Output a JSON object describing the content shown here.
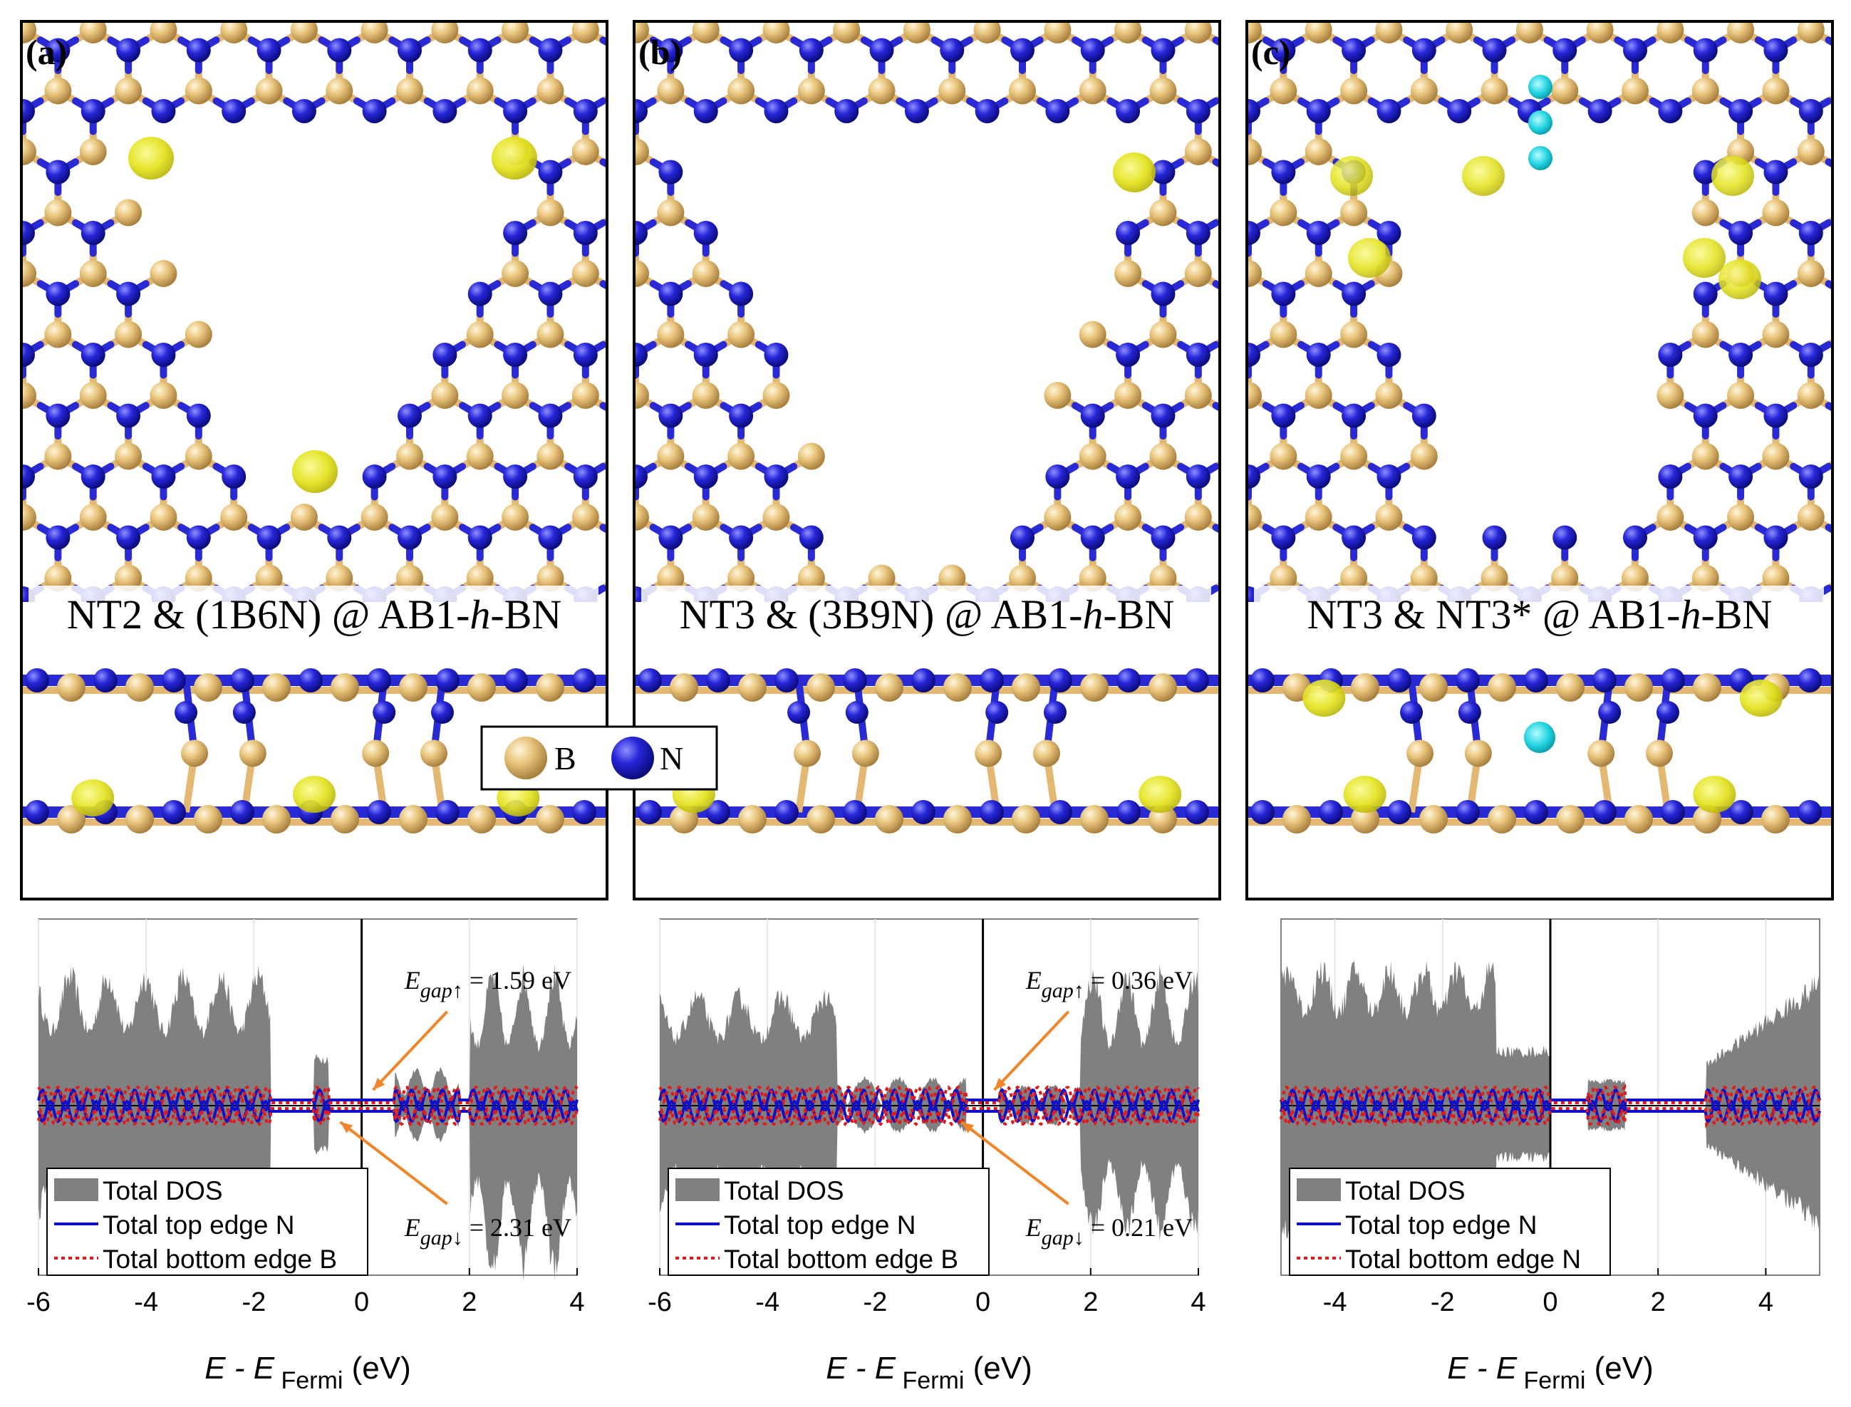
{
  "colors": {
    "boron": "#e8c27a",
    "nitrogen": "#1f1fd0",
    "bond_b": "#e3b872",
    "bond_n": "#2a2ad4",
    "iso_yellow": "#e3e21a",
    "iso_cyan": "#22d3e0",
    "dos_fill": "#808080",
    "top_edge": "#1010c8",
    "bottom_edge": "#e01a1a",
    "arrow": "#f0852a"
  },
  "atom_legend": {
    "b_label": "B",
    "n_label": "N"
  },
  "structure_panels": [
    {
      "id": "a",
      "letter": "(a)",
      "title_pre": "NT2 & (1B6N) @ AB1-",
      "title_ital": "h",
      "title_post": "-BN"
    },
    {
      "id": "b",
      "letter": "(b)",
      "title_pre": "NT3 & (3B9N) @ AB1-",
      "title_ital": "h",
      "title_post": "-BN"
    },
    {
      "id": "c",
      "letter": "(c)",
      "title_pre": "NT3 & NT3* @ AB1-",
      "title_ital": "h",
      "title_post": "-BN"
    }
  ],
  "xaxis_label": {
    "prefix": "E - E",
    "subscript": "Fermi",
    "units": "(eV)"
  },
  "chart_data": [
    {
      "type": "area",
      "panel": "a",
      "xlabel": "E - E Fermi (eV)",
      "ylabel": "",
      "xlim": [
        -6,
        4
      ],
      "xticks": [
        "-6",
        "-4",
        "-2",
        "0",
        "2",
        "4"
      ],
      "series": [
        {
          "name": "Total DOS",
          "style": "filled gray area, mirrored spin up/down"
        },
        {
          "name": "Total top edge N",
          "style": "solid blue line"
        },
        {
          "name": "Total bottom edge B",
          "style": "dotted red line"
        }
      ],
      "annotations": [
        {
          "sym": "E",
          "sub": "gap↑",
          "value": " = 1.59 eV"
        },
        {
          "sym": "E",
          "sub": "gap↓",
          "value": " = 2.31 eV"
        }
      ]
    },
    {
      "type": "area",
      "panel": "b",
      "xlabel": "E - E Fermi (eV)",
      "ylabel": "",
      "xlim": [
        -6,
        4
      ],
      "xticks": [
        "-6",
        "-4",
        "-2",
        "0",
        "2",
        "4"
      ],
      "series": [
        {
          "name": "Total DOS",
          "style": "filled gray area, mirrored spin up/down"
        },
        {
          "name": "Total top edge N",
          "style": "solid blue line"
        },
        {
          "name": "Total bottom edge B",
          "style": "dotted red line"
        }
      ],
      "annotations": [
        {
          "sym": "E",
          "sub": "gap↑",
          "value": " = 0.36 eV"
        },
        {
          "sym": "E",
          "sub": "gap↓",
          "value": " = 0.21 eV"
        }
      ]
    },
    {
      "type": "area",
      "panel": "c",
      "xlabel": "E - E Fermi (eV)",
      "ylabel": "",
      "xlim": [
        -5,
        5
      ],
      "xticks": [
        "-4",
        "-2",
        "0",
        "2",
        "4"
      ],
      "series": [
        {
          "name": "Total DOS",
          "style": "filled gray area, mirrored spin up/down"
        },
        {
          "name": "Total top edge N",
          "style": "solid blue line"
        },
        {
          "name": "Total bottom edge N",
          "style": "dotted red line"
        }
      ],
      "annotations": []
    }
  ]
}
